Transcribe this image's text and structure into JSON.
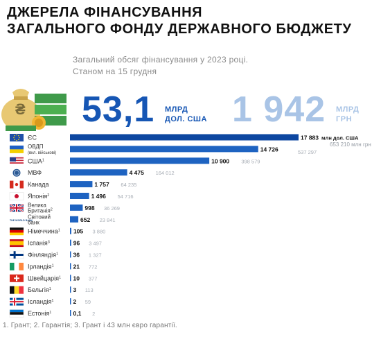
{
  "title_line1": "ДЖЕРЕЛА ФІНАНСУВАННЯ",
  "title_line2": "ЗАГАЛЬНОГО ФОНДУ ДЕРЖАВНОГО БЮДЖЕТУ",
  "subtitle_line1": "Загальний обсяг фінансування у 2023 році.",
  "subtitle_line2": "Станом на 15 грудня",
  "total_usd": "53,1",
  "total_usd_unit_line1": "МЛРД",
  "total_usd_unit_line2": "ДОЛ. США",
  "total_uah": "1 942",
  "total_uah_unit_line1": "МЛРД",
  "total_uah_unit_line2": "ГРН",
  "footnote": "1. Грант; 2. Гарантія; 3. Грант і 43 млн євро гарантії.",
  "colors": {
    "accent": "#1656b4",
    "secondary": "#a9c4e6",
    "bar_dark": "#0d47a1",
    "bar_light": "#2f7fd4"
  },
  "chart_data": {
    "type": "bar",
    "orientation": "horizontal",
    "categories": [
      {
        "label": "ЄС",
        "sup": "",
        "sub": "",
        "flag": "eu-flag"
      },
      {
        "label": "ОВДП",
        "sup": "",
        "sub": "(вкл. військові)",
        "flag": "ukraine-flag"
      },
      {
        "label": "США",
        "sup": "1",
        "sub": "",
        "flag": "usa-flag"
      },
      {
        "label": "МВФ",
        "sup": "",
        "sub": "",
        "flag": "imf-logo"
      },
      {
        "label": "Канада",
        "sup": "",
        "sub": "",
        "flag": "canada-flag"
      },
      {
        "label": "Японія",
        "sup": "2",
        "sub": "",
        "flag": "japan-flag"
      },
      {
        "label": "Велика",
        "sup": "",
        "sub": "Британія",
        "sub_sup": "2",
        "flag": "uk-flag"
      },
      {
        "label": "Світовий",
        "sup": "",
        "sub": "банк",
        "flag": "world-bank-logo"
      },
      {
        "label": "Німеччина",
        "sup": "1",
        "sub": "",
        "flag": "germany-flag"
      },
      {
        "label": "Іспанія",
        "sup": "3",
        "sub": "",
        "flag": "spain-flag"
      },
      {
        "label": "Фінляндія",
        "sup": "1",
        "sub": "",
        "flag": "finland-flag"
      },
      {
        "label": "Ірландія",
        "sup": "1",
        "sub": "",
        "flag": "ireland-flag"
      },
      {
        "label": "Швейцарія",
        "sup": "1",
        "sub": "",
        "flag": "switzerland-flag"
      },
      {
        "label": "Бельгія",
        "sup": "1",
        "sub": "",
        "flag": "belgium-flag"
      },
      {
        "label": "Ісландія",
        "sup": "1",
        "sub": "",
        "flag": "iceland-flag"
      },
      {
        "label": "Естонія",
        "sup": "1",
        "sub": "",
        "flag": "estonia-flag"
      }
    ],
    "series": [
      {
        "name": "млн дол. США",
        "values": [
          17883,
          14726,
          10900,
          4475,
          1757,
          1496,
          998,
          652,
          105,
          96,
          36,
          21,
          10,
          3,
          2,
          0.1
        ]
      },
      {
        "name": "млн грн",
        "values": [
          653210,
          537297,
          398579,
          164012,
          64235,
          54716,
          36269,
          23841,
          3880,
          3497,
          1327,
          772,
          377,
          113,
          59,
          2
        ]
      }
    ],
    "usd_labels": [
      "17 883",
      "14 726",
      "10 900",
      "4 475",
      "1 757",
      "1 496",
      "998",
      "652",
      "105",
      "96",
      "36",
      "21",
      "10",
      "3",
      "2",
      "0,1"
    ],
    "uah_labels": [
      "",
      "537 297",
      "398 579",
      "164 012",
      "64 235",
      "54 716",
      "36 269",
      "23 841",
      "3 880",
      "3 497",
      "1 327",
      "772",
      "377",
      "113",
      "59",
      "2"
    ],
    "top_label_usd_unit": "млн дол. США",
    "top_label_uah": "653 210 млн грн"
  }
}
